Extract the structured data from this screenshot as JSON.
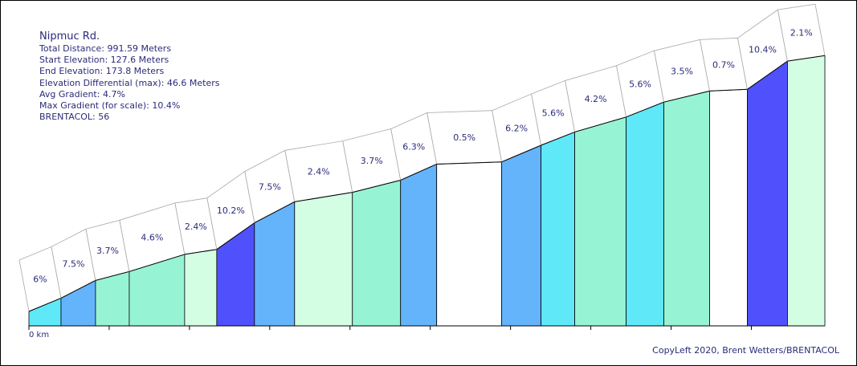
{
  "chart_data": {
    "type": "area",
    "title": "Nipmuc Rd.",
    "info_lines": [
      "Total Distance: 991.59 Meters",
      "Start Elevation: 127.6 Meters",
      "End Elevation: 173.8 Meters",
      "Elevation Differential (max): 46.6 Meters",
      "Avg Gradient: 4.7%",
      "Max Gradient (for scale): 10.4%",
      "BRENTACOL: 56"
    ],
    "x_unit": "meters",
    "y_unit": "meters",
    "x_tick_labels": [
      {
        "x": 0,
        "label": "0 km"
      }
    ],
    "x_ticks": [
      0,
      100,
      200,
      300,
      400,
      500,
      600,
      700,
      800,
      900
    ],
    "segments": [
      {
        "x0": 0,
        "x1": 40,
        "e0": 127.6,
        "e1": 130.0,
        "label": "6%",
        "color": "#5fe8f8"
      },
      {
        "x0": 40,
        "x1": 83,
        "e0": 130.0,
        "e1": 133.2,
        "label": "7.5%",
        "color": "#64b4fc"
      },
      {
        "x0": 83,
        "x1": 125,
        "e0": 133.2,
        "e1": 134.8,
        "label": "3.7%",
        "color": "#96f4d4"
      },
      {
        "x0": 125,
        "x1": 194,
        "e0": 134.8,
        "e1": 137.9,
        "label": "4.6%",
        "color": "#96f4d4"
      },
      {
        "x0": 194,
        "x1": 234,
        "e0": 137.9,
        "e1": 138.8,
        "label": "2.4%",
        "color": "#d4fee4"
      },
      {
        "x0": 234,
        "x1": 281,
        "e0": 138.8,
        "e1": 143.6,
        "label": "10.2%",
        "color": "#5050fc"
      },
      {
        "x0": 281,
        "x1": 331,
        "e0": 143.6,
        "e1": 147.4,
        "label": "7.5%",
        "color": "#64b4fc"
      },
      {
        "x0": 331,
        "x1": 403,
        "e0": 147.4,
        "e1": 149.1,
        "label": "2.4%",
        "color": "#d4fee4"
      },
      {
        "x0": 403,
        "x1": 463,
        "e0": 149.1,
        "e1": 151.3,
        "label": "3.7%",
        "color": "#96f4d4"
      },
      {
        "x0": 463,
        "x1": 508,
        "e0": 151.3,
        "e1": 154.2,
        "label": "6.3%",
        "color": "#64b4fc"
      },
      {
        "x0": 508,
        "x1": 589,
        "e0": 154.2,
        "e1": 154.6,
        "label": "0.5%",
        "color": "#ffffff"
      },
      {
        "x0": 589,
        "x1": 638,
        "e0": 154.6,
        "e1": 157.6,
        "label": "6.2%",
        "color": "#64b4fc"
      },
      {
        "x0": 638,
        "x1": 680,
        "e0": 157.6,
        "e1": 160.0,
        "label": "5.6%",
        "color": "#5fe8f8"
      },
      {
        "x0": 680,
        "x1": 744,
        "e0": 160.0,
        "e1": 162.7,
        "label": "4.2%",
        "color": "#96f4d4"
      },
      {
        "x0": 744,
        "x1": 791,
        "e0": 162.7,
        "e1": 165.4,
        "label": "5.6%",
        "color": "#5fe8f8"
      },
      {
        "x0": 791,
        "x1": 848,
        "e0": 165.4,
        "e1": 167.4,
        "label": "3.5%",
        "color": "#96f4d4"
      },
      {
        "x0": 848,
        "x1": 895,
        "e0": 167.4,
        "e1": 167.7,
        "label": "0.7%",
        "color": "#ffffff"
      },
      {
        "x0": 895,
        "x1": 945,
        "e0": 167.7,
        "e1": 172.8,
        "label": "10.4%",
        "color": "#5050fc"
      },
      {
        "x0": 945,
        "x1": 991.59,
        "e0": 172.8,
        "e1": 173.8,
        "label": "2.1%",
        "color": "#d4fee4"
      }
    ]
  },
  "footer": {
    "copyright": "CopyLeft 2020, Brent Wetters/BRENTACOL"
  }
}
